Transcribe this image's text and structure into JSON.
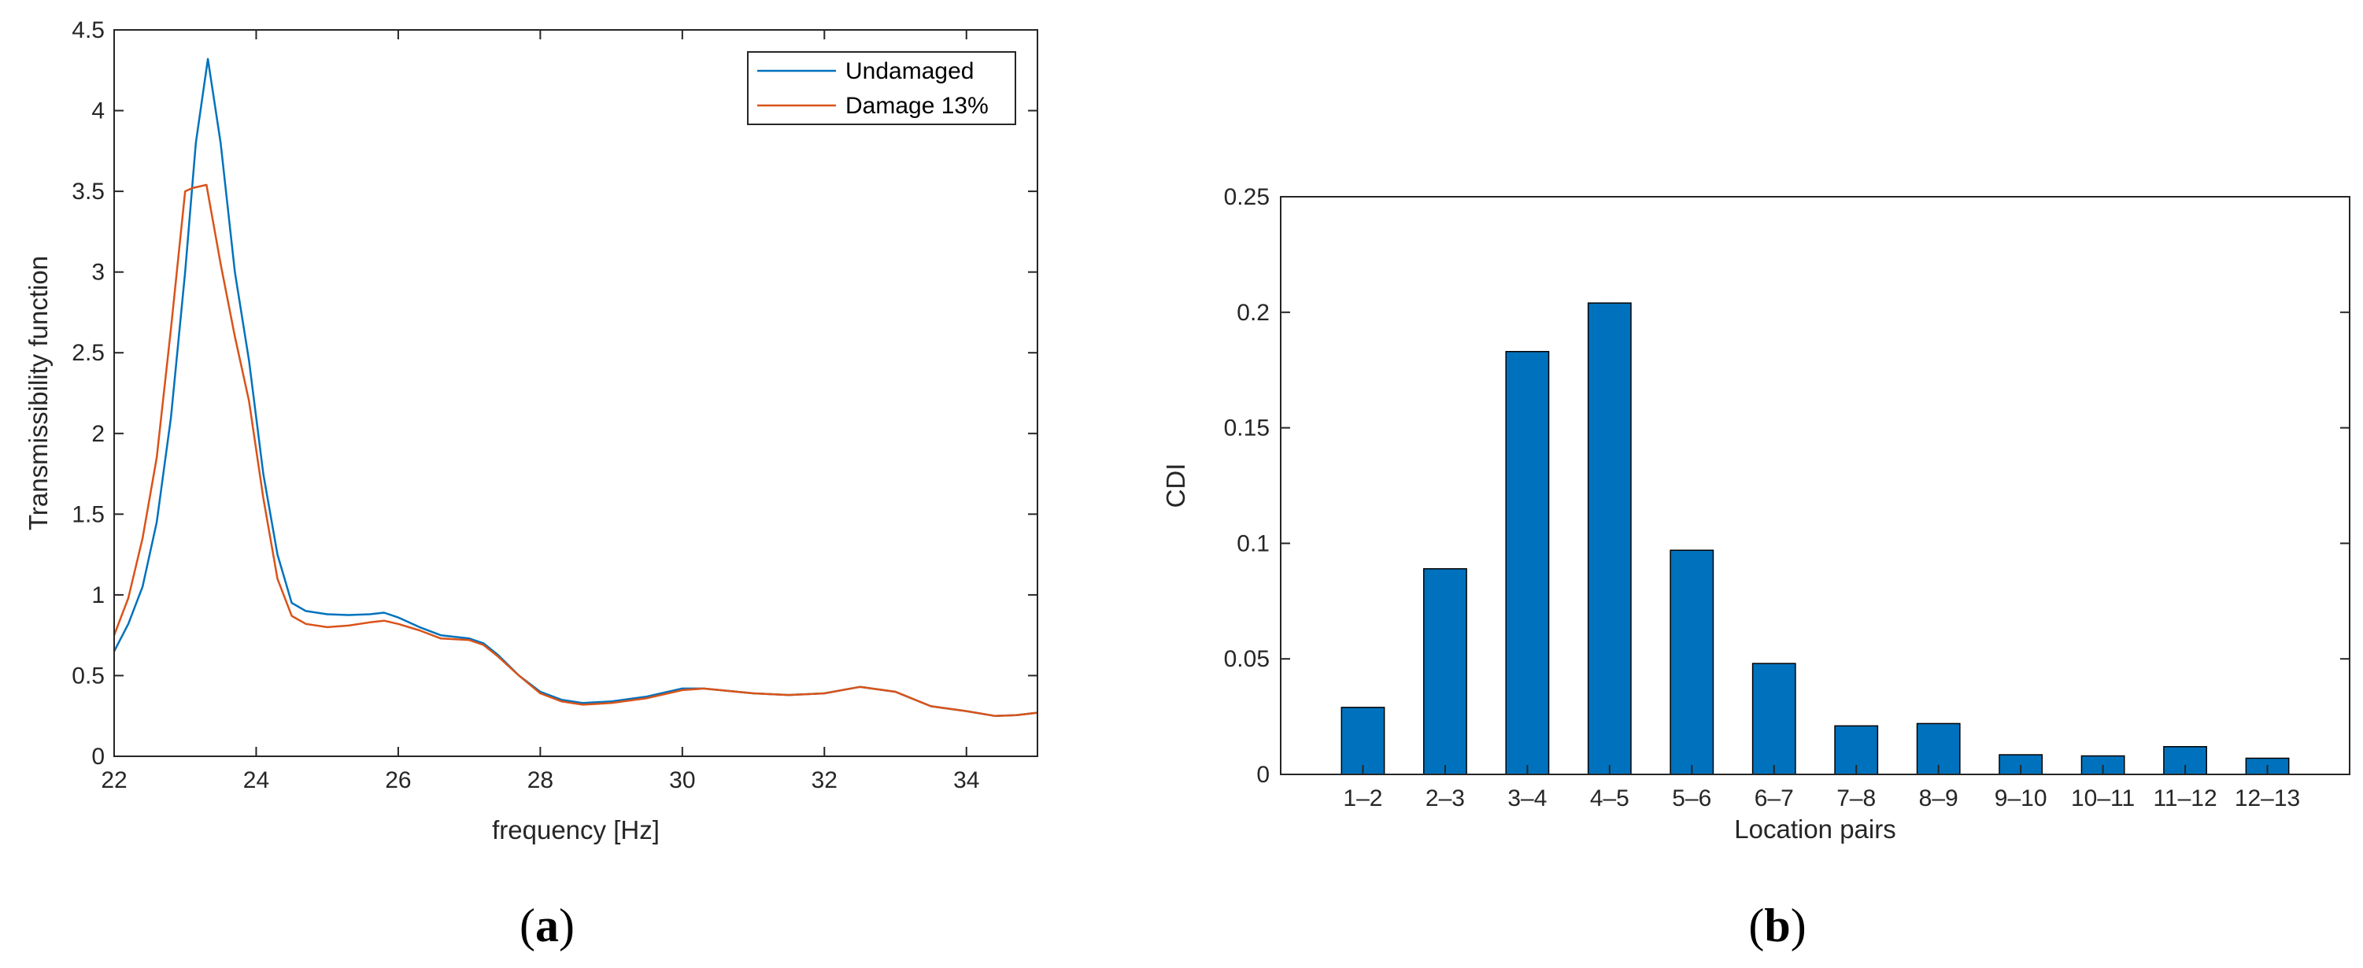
{
  "panels": [
    {
      "label_open": "(",
      "label_letter": "a",
      "label_close": ")"
    },
    {
      "label_open": "(",
      "label_letter": "b",
      "label_close": ")"
    }
  ],
  "chart_data": [
    {
      "type": "line",
      "xlabel": "frequency [Hz]",
      "ylabel": "Transmissibility function",
      "xlim": [
        22,
        35
      ],
      "ylim": [
        0,
        4.5
      ],
      "xticks": [
        22,
        24,
        26,
        28,
        30,
        32,
        34
      ],
      "yticks": [
        0,
        0.5,
        1,
        1.5,
        2,
        2.5,
        3,
        3.5,
        4,
        4.5
      ],
      "grid": false,
      "legend_position": "top-right",
      "series": [
        {
          "name": "Undamaged",
          "color": "#0072BD",
          "points": [
            [
              22.0,
              0.65
            ],
            [
              22.2,
              0.82
            ],
            [
              22.4,
              1.05
            ],
            [
              22.6,
              1.45
            ],
            [
              22.8,
              2.1
            ],
            [
              23.0,
              3.0
            ],
            [
              23.15,
              3.8
            ],
            [
              23.32,
              4.32
            ],
            [
              23.5,
              3.8
            ],
            [
              23.7,
              3.0
            ],
            [
              23.9,
              2.45
            ],
            [
              24.1,
              1.75
            ],
            [
              24.3,
              1.25
            ],
            [
              24.5,
              0.95
            ],
            [
              24.7,
              0.9
            ],
            [
              25.0,
              0.88
            ],
            [
              25.3,
              0.875
            ],
            [
              25.6,
              0.88
            ],
            [
              25.8,
              0.89
            ],
            [
              26.0,
              0.86
            ],
            [
              26.3,
              0.8
            ],
            [
              26.6,
              0.75
            ],
            [
              27.0,
              0.73
            ],
            [
              27.2,
              0.7
            ],
            [
              27.4,
              0.63
            ],
            [
              27.7,
              0.5
            ],
            [
              28.0,
              0.4
            ],
            [
              28.3,
              0.35
            ],
            [
              28.6,
              0.33
            ],
            [
              29.0,
              0.34
            ],
            [
              29.5,
              0.37
            ],
            [
              30.0,
              0.42
            ],
            [
              30.3,
              0.42
            ],
            [
              31.0,
              0.39
            ],
            [
              31.5,
              0.38
            ],
            [
              32.0,
              0.39
            ],
            [
              32.5,
              0.43
            ],
            [
              33.0,
              0.4
            ],
            [
              33.5,
              0.31
            ],
            [
              34.0,
              0.28
            ],
            [
              34.4,
              0.25
            ],
            [
              34.7,
              0.255
            ],
            [
              35.0,
              0.27
            ]
          ]
        },
        {
          "name": "Damage 13%",
          "color": "#D95319",
          "points": [
            [
              22.0,
              0.75
            ],
            [
              22.2,
              0.98
            ],
            [
              22.4,
              1.35
            ],
            [
              22.6,
              1.85
            ],
            [
              22.8,
              2.65
            ],
            [
              23.0,
              3.5
            ],
            [
              23.1,
              3.52
            ],
            [
              23.3,
              3.54
            ],
            [
              23.5,
              3.05
            ],
            [
              23.7,
              2.6
            ],
            [
              23.9,
              2.2
            ],
            [
              24.1,
              1.6
            ],
            [
              24.3,
              1.1
            ],
            [
              24.5,
              0.87
            ],
            [
              24.7,
              0.82
            ],
            [
              25.0,
              0.8
            ],
            [
              25.3,
              0.81
            ],
            [
              25.6,
              0.83
            ],
            [
              25.8,
              0.84
            ],
            [
              26.0,
              0.82
            ],
            [
              26.3,
              0.78
            ],
            [
              26.6,
              0.73
            ],
            [
              27.0,
              0.72
            ],
            [
              27.2,
              0.69
            ],
            [
              27.4,
              0.62
            ],
            [
              27.7,
              0.5
            ],
            [
              28.0,
              0.39
            ],
            [
              28.3,
              0.34
            ],
            [
              28.6,
              0.32
            ],
            [
              29.0,
              0.33
            ],
            [
              29.5,
              0.36
            ],
            [
              30.0,
              0.41
            ],
            [
              30.3,
              0.42
            ],
            [
              31.0,
              0.39
            ],
            [
              31.5,
              0.38
            ],
            [
              32.0,
              0.39
            ],
            [
              32.5,
              0.43
            ],
            [
              33.0,
              0.4
            ],
            [
              33.5,
              0.31
            ],
            [
              34.0,
              0.28
            ],
            [
              34.4,
              0.25
            ],
            [
              34.7,
              0.255
            ],
            [
              35.0,
              0.27
            ]
          ]
        }
      ]
    },
    {
      "type": "bar",
      "xlabel": "Location pairs",
      "ylabel": "CDI",
      "ylim": [
        0,
        0.25
      ],
      "yticks": [
        0,
        0.05,
        0.1,
        0.15,
        0.2,
        0.25
      ],
      "ytick_labels": [
        "0",
        "0.05",
        "0.1",
        "0.15",
        "0.2",
        "0.25"
      ],
      "grid": false,
      "bar_color": "#0072BD",
      "categories": [
        "1–2",
        "2–3",
        "3–4",
        "4–5",
        "5–6",
        "6–7",
        "7–8",
        "8–9",
        "9–10",
        "10–11",
        "11–12",
        "12–13"
      ],
      "values": [
        0.029,
        0.089,
        0.183,
        0.204,
        0.097,
        0.048,
        0.021,
        0.022,
        0.0085,
        0.008,
        0.012,
        0.007
      ]
    }
  ]
}
